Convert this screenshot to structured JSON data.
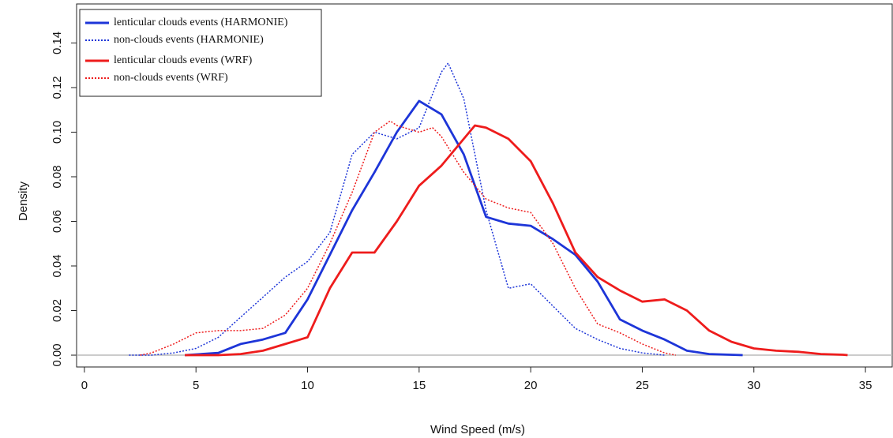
{
  "chart_data": {
    "type": "line",
    "x_label": "Wind Speed (m/s)",
    "y_label": "Density",
    "xlim": [
      -0.35,
      36.2
    ],
    "ylim": [
      -0.0053,
      0.1575
    ],
    "xticks": [
      0,
      5,
      10,
      15,
      20,
      25,
      30,
      35
    ],
    "yticks": [
      {
        "value": 0,
        "label": "0.00"
      },
      0.02,
      0.04,
      0.06,
      0.08,
      {
        "value": 0.1,
        "label": "0.10"
      },
      0.12,
      0.14
    ],
    "zero_line": true,
    "legend": "upper left",
    "series": [
      {
        "name": "lenticular  clouds events (HARMONIE)",
        "color": "#1d35d8",
        "linestyle": "solid",
        "x": [
          4.5,
          6,
          7,
          8,
          9,
          10,
          11,
          12,
          13,
          14,
          15,
          16,
          17,
          18,
          19,
          20,
          21,
          22,
          23,
          24,
          25,
          26,
          27,
          28,
          29.5
        ],
        "values": [
          0,
          0.001,
          0.005,
          0.007,
          0.01,
          0.025,
          0.045,
          0.065,
          0.082,
          0.1,
          0.114,
          0.108,
          0.09,
          0.062,
          0.059,
          0.058,
          0.052,
          0.045,
          0.033,
          0.016,
          0.011,
          0.007,
          0.002,
          0.0005,
          0
        ]
      },
      {
        "name": "non-clouds events (HARMONIE)",
        "color": "#1d35d8",
        "linestyle": "dotted",
        "x": [
          2,
          3,
          4,
          5,
          6,
          7,
          8,
          9,
          10,
          11,
          12,
          13,
          14,
          15,
          16,
          16.3,
          17,
          18,
          19,
          20,
          21,
          22,
          23,
          24,
          25,
          26
        ],
        "values": [
          0,
          0,
          0.001,
          0.003,
          0.008,
          0.017,
          0.026,
          0.035,
          0.042,
          0.055,
          0.09,
          0.1,
          0.097,
          0.102,
          0.127,
          0.131,
          0.115,
          0.065,
          0.03,
          0.032,
          0.022,
          0.012,
          0.007,
          0.003,
          0.001,
          0
        ]
      },
      {
        "name": "lenticular  clouds events (WRF)",
        "color": "#ee1c1c",
        "linestyle": "solid",
        "x": [
          4.5,
          6,
          7,
          8,
          9,
          10,
          11,
          12,
          13,
          14,
          15,
          16,
          17,
          17.5,
          18,
          19,
          20,
          21,
          22,
          23,
          24,
          25,
          26,
          27,
          28,
          29,
          30,
          31,
          32,
          33,
          34,
          34.2
        ],
        "values": [
          0,
          0,
          0.0005,
          0.002,
          0.005,
          0.008,
          0.03,
          0.046,
          0.046,
          0.06,
          0.076,
          0.085,
          0.097,
          0.103,
          0.102,
          0.097,
          0.087,
          0.068,
          0.046,
          0.035,
          0.029,
          0.024,
          0.025,
          0.02,
          0.011,
          0.006,
          0.003,
          0.002,
          0.0015,
          0.0005,
          0.0002,
          0
        ]
      },
      {
        "name": "non-clouds events (WRF)",
        "color": "#ee1c1c",
        "linestyle": "dotted",
        "x": [
          2.5,
          3,
          4,
          5,
          6,
          7,
          8,
          9,
          10,
          11,
          12,
          13,
          13.7,
          14,
          15,
          15.6,
          16,
          17,
          18,
          19,
          20,
          21,
          22,
          23,
          24,
          25,
          26,
          26.5
        ],
        "values": [
          0,
          0.001,
          0.005,
          0.01,
          0.011,
          0.011,
          0.012,
          0.018,
          0.03,
          0.05,
          0.073,
          0.1,
          0.105,
          0.103,
          0.1,
          0.102,
          0.098,
          0.082,
          0.07,
          0.066,
          0.064,
          0.05,
          0.03,
          0.014,
          0.01,
          0.005,
          0.001,
          0
        ]
      }
    ]
  }
}
